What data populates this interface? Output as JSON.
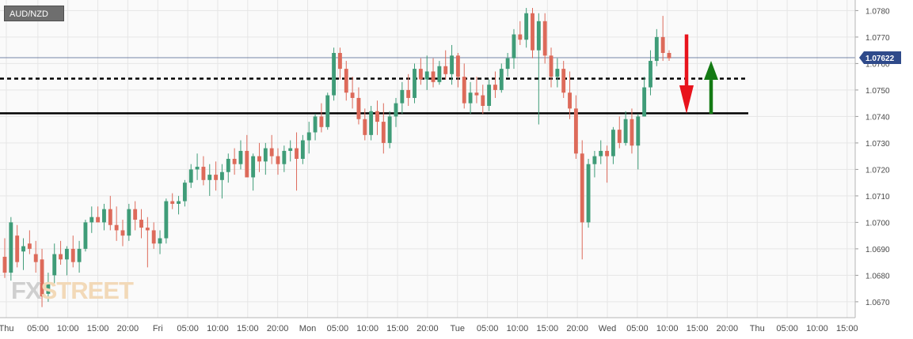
{
  "symbol": "AUD/NZD",
  "watermark": {
    "part1": "FX",
    "part2": "STREET"
  },
  "colors": {
    "up": "#3f9c78",
    "down": "#dd6a5a",
    "last_price_line": "#4a5e8c",
    "badge": "#2f4a8a",
    "arrow_down": "#e8131c",
    "arrow_up": "#147a14",
    "grid": "#e6e6e6"
  },
  "chart_data": {
    "type": "candlestick",
    "title": "AUD/NZD",
    "timeframe": "hourly",
    "x_tick_labels": [
      "Thu",
      "05:00",
      "10:00",
      "15:00",
      "20:00",
      "Fri",
      "05:00",
      "10:00",
      "15:00",
      "20:00",
      "Mon",
      "05:00",
      "10:00",
      "15:00",
      "20:00",
      "Tue",
      "05:00",
      "10:00",
      "15:00",
      "20:00",
      "Wed",
      "05:00",
      "10:00",
      "15:00",
      "20:00",
      "Thu",
      "05:00",
      "10:00",
      "15:00"
    ],
    "y_tick_labels": [
      "1.0780",
      "1.0770",
      "1.0760",
      "1.0750",
      "1.0740",
      "1.0730",
      "1.0720",
      "1.0710",
      "1.0700",
      "1.0690",
      "1.0680",
      "1.0670"
    ],
    "ylim": [
      1.0664,
      1.0784
    ],
    "grid": true,
    "last_price": "1.07622",
    "levels": [
      {
        "value": 1.07543,
        "style": "dashed"
      },
      {
        "value": 1.07412,
        "style": "solid"
      }
    ],
    "annotations": [
      {
        "type": "arrow",
        "direction": "down",
        "color": "red",
        "from": 1.0771,
        "to": 1.0741
      },
      {
        "type": "arrow",
        "direction": "up",
        "color": "green",
        "from": 1.0741,
        "to": 1.0761
      }
    ],
    "candles": [
      [
        1.0687,
        1.0694,
        1.0679,
        1.0681
      ],
      [
        1.0681,
        1.0702,
        1.0678,
        1.07
      ],
      [
        1.0695,
        1.0699,
        1.0683,
        1.0685
      ],
      [
        1.0689,
        1.0694,
        1.0682,
        1.0691
      ],
      [
        1.0692,
        1.0697,
        1.0688,
        1.069
      ],
      [
        1.0688,
        1.0693,
        1.0681,
        1.0685
      ],
      [
        1.0686,
        1.069,
        1.0668,
        1.0672
      ],
      [
        1.0673,
        1.0681,
        1.067,
        1.0677
      ],
      [
        1.068,
        1.0692,
        1.0677,
        1.0688
      ],
      [
        1.0688,
        1.0693,
        1.0684,
        1.0686
      ],
      [
        1.0686,
        1.0691,
        1.068,
        1.069
      ],
      [
        1.069,
        1.0695,
        1.0683,
        1.0685
      ],
      [
        1.0685,
        1.0693,
        1.0681,
        1.069
      ],
      [
        1.069,
        1.0701,
        1.0689,
        1.07
      ],
      [
        1.07,
        1.0706,
        1.0696,
        1.0702
      ],
      [
        1.0702,
        1.0706,
        1.07,
        1.07
      ],
      [
        1.07,
        1.0707,
        1.0697,
        1.0705
      ],
      [
        1.0705,
        1.071,
        1.0697,
        1.0699
      ],
      [
        1.0699,
        1.0706,
        1.0693,
        1.0697
      ],
      [
        1.0697,
        1.0701,
        1.0691,
        1.0695
      ],
      [
        1.0695,
        1.0707,
        1.0693,
        1.0705
      ],
      [
        1.0705,
        1.0708,
        1.0697,
        1.0701
      ],
      [
        1.0701,
        1.0705,
        1.0694,
        1.0698
      ],
      [
        1.0698,
        1.0702,
        1.0683,
        1.0697
      ],
      [
        1.0697,
        1.07,
        1.069,
        1.0692
      ],
      [
        1.0692,
        1.0697,
        1.0688,
        1.0694
      ],
      [
        1.0694,
        1.0709,
        1.0692,
        1.0708
      ],
      [
        1.0708,
        1.0711,
        1.0705,
        1.0707
      ],
      [
        1.0707,
        1.071,
        1.0703,
        1.0708
      ],
      [
        1.0708,
        1.0716,
        1.0706,
        1.0715
      ],
      [
        1.0715,
        1.0722,
        1.0713,
        1.072
      ],
      [
        1.072,
        1.0726,
        1.0716,
        1.0721
      ],
      [
        1.0721,
        1.0725,
        1.0714,
        1.0716
      ],
      [
        1.0716,
        1.0722,
        1.071,
        1.0718
      ],
      [
        1.0718,
        1.0723,
        1.0712,
        1.0716
      ],
      [
        1.0716,
        1.0722,
        1.0709,
        1.0719
      ],
      [
        1.0719,
        1.0726,
        1.0715,
        1.0724
      ],
      [
        1.0724,
        1.0728,
        1.0718,
        1.0722
      ],
      [
        1.0722,
        1.0731,
        1.072,
        1.0727
      ],
      [
        1.0727,
        1.0733,
        1.0718,
        1.0717
      ],
      [
        1.0717,
        1.0726,
        1.0712,
        1.0725
      ],
      [
        1.0725,
        1.073,
        1.0719,
        1.0723
      ],
      [
        1.0723,
        1.073,
        1.0718,
        1.0728
      ],
      [
        1.0728,
        1.0733,
        1.0722,
        1.0725
      ],
      [
        1.0725,
        1.0728,
        1.0718,
        1.0722
      ],
      [
        1.0722,
        1.0729,
        1.0719,
        1.0727
      ],
      [
        1.0727,
        1.0731,
        1.0723,
        1.0728
      ],
      [
        1.0728,
        1.0734,
        1.0712,
        1.0724
      ],
      [
        1.0724,
        1.0733,
        1.0722,
        1.0731
      ],
      [
        1.0731,
        1.0738,
        1.0726,
        1.0734
      ],
      [
        1.0734,
        1.0741,
        1.0731,
        1.074
      ],
      [
        1.074,
        1.0745,
        1.0734,
        1.0736
      ],
      [
        1.0736,
        1.0749,
        1.0735,
        1.0748
      ],
      [
        1.0748,
        1.0766,
        1.0746,
        1.0764
      ],
      [
        1.0764,
        1.0766,
        1.0754,
        1.0758
      ],
      [
        1.0758,
        1.0761,
        1.0746,
        1.0749
      ],
      [
        1.0749,
        1.0755,
        1.0743,
        1.0747
      ],
      [
        1.0747,
        1.0751,
        1.0737,
        1.0739
      ],
      [
        1.0739,
        1.0743,
        1.0731,
        1.0733
      ],
      [
        1.0733,
        1.0744,
        1.0731,
        1.0742
      ],
      [
        1.0742,
        1.0746,
        1.0733,
        1.0738
      ],
      [
        1.0738,
        1.0745,
        1.0726,
        1.073
      ],
      [
        1.073,
        1.0742,
        1.0728,
        1.074
      ],
      [
        1.074,
        1.0747,
        1.0736,
        1.0745
      ],
      [
        1.0745,
        1.0753,
        1.0741,
        1.075
      ],
      [
        1.075,
        1.0756,
        1.0744,
        1.0747
      ],
      [
        1.0747,
        1.076,
        1.0745,
        1.0758
      ],
      [
        1.0758,
        1.0762,
        1.0752,
        1.0754
      ],
      [
        1.0754,
        1.0763,
        1.075,
        1.0757
      ],
      [
        1.0757,
        1.0762,
        1.0751,
        1.0753
      ],
      [
        1.0753,
        1.0761,
        1.0752,
        1.0759
      ],
      [
        1.0759,
        1.0765,
        1.0754,
        1.0756
      ],
      [
        1.0756,
        1.0767,
        1.0752,
        1.0763
      ],
      [
        1.0763,
        1.0764,
        1.0751,
        1.0755
      ],
      [
        1.0755,
        1.076,
        1.0743,
        1.0745
      ],
      [
        1.0745,
        1.0753,
        1.0741,
        1.0749
      ],
      [
        1.0749,
        1.0755,
        1.0745,
        1.0748
      ],
      [
        1.0748,
        1.0752,
        1.0741,
        1.0744
      ],
      [
        1.0744,
        1.0754,
        1.0742,
        1.0752
      ],
      [
        1.0752,
        1.0757,
        1.0747,
        1.075
      ],
      [
        1.075,
        1.076,
        1.0749,
        1.0758
      ],
      [
        1.0758,
        1.0764,
        1.0755,
        1.0762
      ],
      [
        1.0762,
        1.0773,
        1.0758,
        1.0771
      ],
      [
        1.0771,
        1.0776,
        1.0767,
        1.0769
      ],
      [
        1.0769,
        1.0781,
        1.0766,
        1.0779
      ],
      [
        1.0779,
        1.0781,
        1.0762,
        1.0765
      ],
      [
        1.0765,
        1.0779,
        1.0737,
        1.0776
      ],
      [
        1.0776,
        1.0779,
        1.076,
        1.0763
      ],
      [
        1.0763,
        1.0766,
        1.0751,
        1.0755
      ],
      [
        1.0755,
        1.0762,
        1.0751,
        1.0758
      ],
      [
        1.0758,
        1.0761,
        1.0747,
        1.0749
      ],
      [
        1.0749,
        1.0757,
        1.0739,
        1.0743
      ],
      [
        1.0743,
        1.0748,
        1.0724,
        1.0726
      ],
      [
        1.0726,
        1.0731,
        1.0686,
        1.07
      ],
      [
        1.07,
        1.0724,
        1.0698,
        1.0722
      ],
      [
        1.0722,
        1.0727,
        1.0717,
        1.0725
      ],
      [
        1.0725,
        1.0731,
        1.0722,
        1.0727
      ],
      [
        1.0727,
        1.0729,
        1.0715,
        1.0725
      ],
      [
        1.0725,
        1.0736,
        1.0722,
        1.0735
      ],
      [
        1.0735,
        1.074,
        1.0728,
        1.073
      ],
      [
        1.073,
        1.0742,
        1.0729,
        1.0739
      ],
      [
        1.0739,
        1.0743,
        1.0726,
        1.0729
      ],
      [
        1.0729,
        1.0741,
        1.072,
        1.074
      ],
      [
        1.074,
        1.0755,
        1.074,
        1.0751
      ],
      [
        1.0751,
        1.0765,
        1.0748,
        1.0761
      ],
      [
        1.0761,
        1.0773,
        1.0759,
        1.077
      ],
      [
        1.077,
        1.0778,
        1.0761,
        1.0764
      ],
      [
        1.0764,
        1.0765,
        1.0761,
        1.0762
      ]
    ]
  }
}
